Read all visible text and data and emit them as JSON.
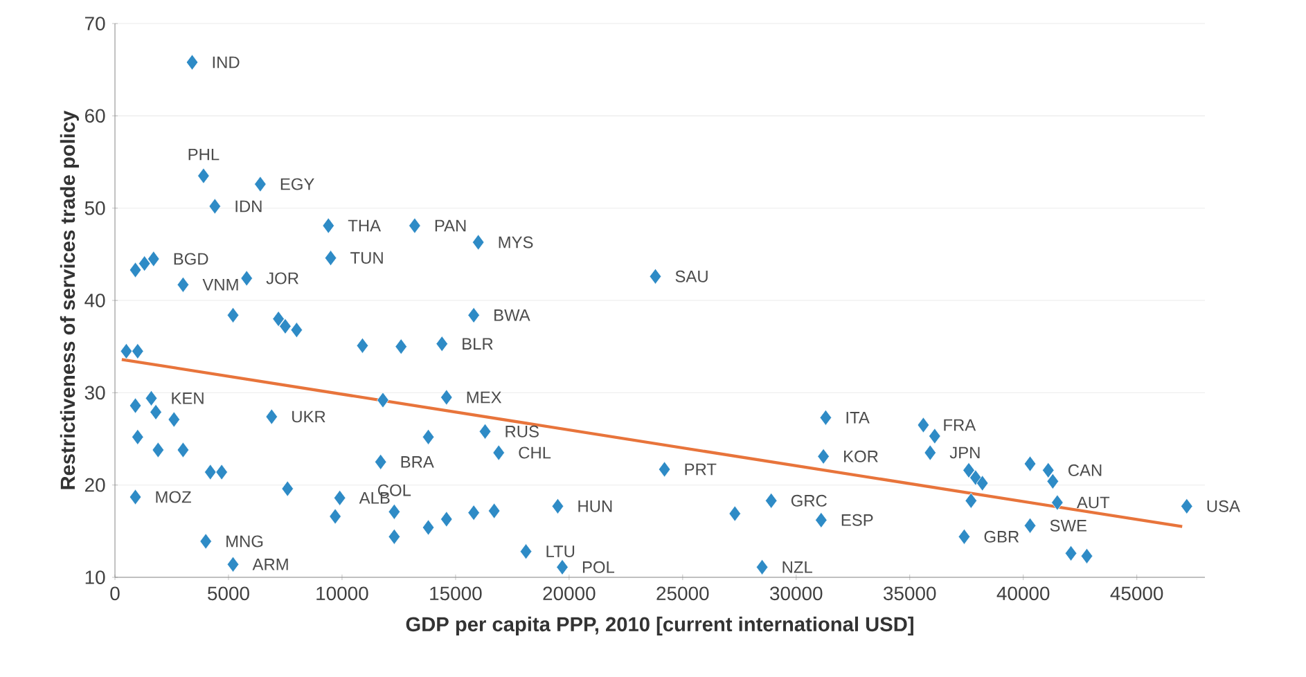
{
  "chart_data": {
    "type": "scatter",
    "xlabel": "GDP per capita PPP, 2010 [current international USD]",
    "ylabel": "Restrictiveness of services trade policy",
    "xlim": [
      0,
      48000
    ],
    "xticks": [
      0,
      5000,
      10000,
      15000,
      20000,
      25000,
      30000,
      35000,
      40000,
      45000
    ],
    "ylim": [
      10,
      70
    ],
    "yticks": [
      10,
      20,
      30,
      40,
      50,
      60,
      70
    ],
    "grid": "y",
    "series": [
      {
        "type": "scatter",
        "marker": "diamond",
        "color": "#2e8bc6",
        "x": [
          3400,
          3900,
          6400,
          4400,
          9400,
          13200,
          16000,
          23800,
          900,
          1300,
          1700,
          3000,
          5800,
          9500,
          15800,
          5200,
          7200,
          7500,
          8000,
          10900,
          12600,
          14400,
          500,
          1000,
          14600,
          11800,
          6900,
          13800,
          16300,
          16900,
          11700,
          24200,
          31300,
          31200,
          35600,
          36100,
          35900,
          37600,
          37900,
          38200,
          40300,
          41100,
          41300,
          41500,
          40300,
          37700,
          37400,
          42100,
          42800,
          47200,
          31100,
          28900,
          27300,
          28500,
          19500,
          18100,
          19700,
          16700,
          4000,
          5200,
          900,
          900,
          1600,
          1800,
          2600,
          1000,
          1900,
          3000,
          4200,
          4700,
          7600,
          9900,
          9700,
          12300,
          12300,
          13800,
          14600,
          15800
        ],
        "values": [
          65.8,
          53.5,
          52.6,
          50.2,
          48.1,
          48.1,
          46.3,
          42.6,
          43.3,
          44.0,
          44.5,
          41.7,
          42.4,
          44.6,
          38.4,
          38.4,
          38.0,
          37.2,
          36.8,
          35.1,
          35.0,
          35.3,
          34.5,
          34.5,
          29.5,
          29.2,
          27.4,
          25.2,
          25.8,
          23.5,
          22.5,
          21.7,
          27.3,
          23.1,
          26.5,
          25.3,
          23.5,
          21.6,
          20.8,
          20.2,
          22.3,
          21.6,
          20.4,
          18.1,
          15.6,
          18.3,
          14.4,
          12.6,
          12.3,
          17.7,
          16.2,
          18.3,
          16.9,
          11.1,
          17.7,
          12.8,
          11.1,
          17.2,
          13.9,
          11.4,
          18.7,
          28.6,
          29.4,
          27.9,
          27.1,
          25.2,
          23.8,
          23.8,
          21.4,
          21.4,
          19.6,
          18.6,
          16.6,
          17.1,
          14.4,
          15.4,
          16.3,
          17.0
        ]
      },
      {
        "type": "line",
        "marker": "none",
        "color": "#e8743b",
        "x": [
          300,
          47000
        ],
        "values": [
          33.6,
          15.5
        ]
      }
    ],
    "annotations": [
      {
        "text": "IND",
        "x": 3400,
        "y": 65.8
      },
      {
        "text": "PHL",
        "x": 3900,
        "y": 53.5
      },
      {
        "text": "EGY",
        "x": 6400,
        "y": 52.6
      },
      {
        "text": "IDN",
        "x": 4400,
        "y": 50.2
      },
      {
        "text": "THA",
        "x": 9400,
        "y": 48.1
      },
      {
        "text": "PAN",
        "x": 13200,
        "y": 48.1
      },
      {
        "text": "MYS",
        "x": 16000,
        "y": 46.3
      },
      {
        "text": "SAU",
        "x": 23800,
        "y": 42.6
      },
      {
        "text": "BGD",
        "x": 1700,
        "y": 44.5
      },
      {
        "text": "VNM",
        "x": 3000,
        "y": 41.7
      },
      {
        "text": "JOR",
        "x": 5800,
        "y": 42.4
      },
      {
        "text": "TUN",
        "x": 9500,
        "y": 44.6
      },
      {
        "text": "BWA",
        "x": 15800,
        "y": 38.4
      },
      {
        "text": "BLR",
        "x": 14400,
        "y": 35.3
      },
      {
        "text": "MEX",
        "x": 14600,
        "y": 29.5
      },
      {
        "text": "UKR",
        "x": 6900,
        "y": 27.4
      },
      {
        "text": "RUS",
        "x": 16300,
        "y": 25.8
      },
      {
        "text": "CHL",
        "x": 16900,
        "y": 23.5
      },
      {
        "text": "BRA",
        "x": 11700,
        "y": 22.5
      },
      {
        "text": "PRT",
        "x": 24200,
        "y": 21.7
      },
      {
        "text": "ITA",
        "x": 31300,
        "y": 27.3
      },
      {
        "text": "KOR",
        "x": 31200,
        "y": 23.1
      },
      {
        "text": "FRA",
        "x": 35600,
        "y": 26.5
      },
      {
        "text": "JPN",
        "x": 35900,
        "y": 23.5
      },
      {
        "text": "CAN",
        "x": 41100,
        "y": 21.6
      },
      {
        "text": "AUT",
        "x": 41500,
        "y": 18.1
      },
      {
        "text": "SWE",
        "x": 40300,
        "y": 15.6
      },
      {
        "text": "GBR",
        "x": 37400,
        "y": 14.4
      },
      {
        "text": "USA",
        "x": 47200,
        "y": 17.7
      },
      {
        "text": "ESP",
        "x": 31100,
        "y": 16.2
      },
      {
        "text": "GRC",
        "x": 28900,
        "y": 18.3
      },
      {
        "text": "NZL",
        "x": 28500,
        "y": 11.1
      },
      {
        "text": "HUN",
        "x": 19500,
        "y": 17.7
      },
      {
        "text": "LTU",
        "x": 18100,
        "y": 12.8
      },
      {
        "text": "POL",
        "x": 19700,
        "y": 11.1
      },
      {
        "text": "MNG",
        "x": 4000,
        "y": 13.9
      },
      {
        "text": "ARM",
        "x": 5200,
        "y": 11.4
      },
      {
        "text": "MOZ",
        "x": 900,
        "y": 18.7
      },
      {
        "text": "KEN",
        "x": 1600,
        "y": 29.4
      },
      {
        "text": "ALB",
        "x": 9900,
        "y": 18.6
      },
      {
        "text": "COL",
        "x": 12300,
        "y": 17.1
      }
    ]
  }
}
